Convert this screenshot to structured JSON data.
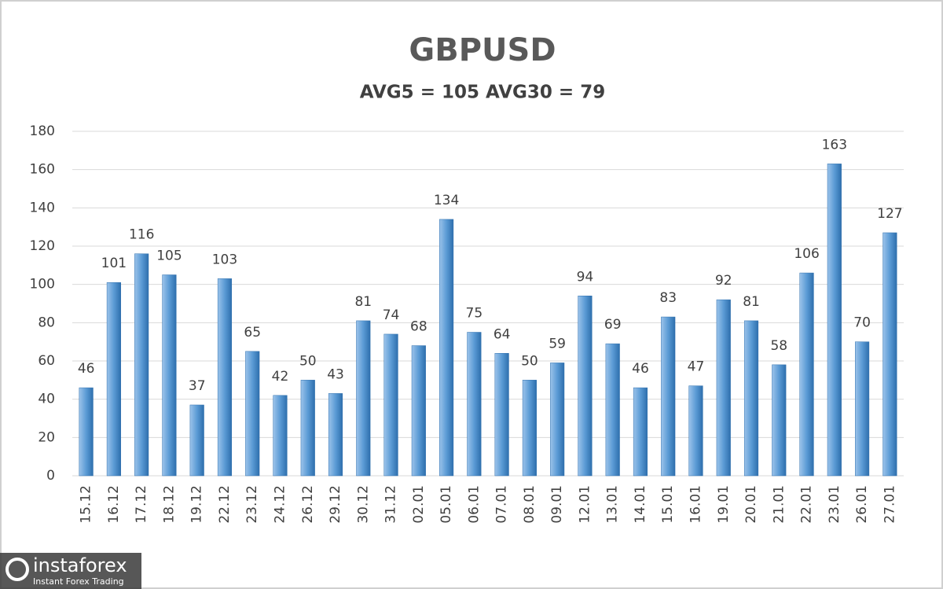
{
  "chart_data": {
    "type": "bar",
    "title": "GBPUSD",
    "subtitle": "AVG5 = 105 AVG30 = 79",
    "categories": [
      "15.12",
      "16.12",
      "17.12",
      "18.12",
      "19.12",
      "22.12",
      "23.12",
      "24.12",
      "26.12",
      "29.12",
      "30.12",
      "31.12",
      "02.01",
      "05.01",
      "06.01",
      "07.01",
      "08.01",
      "09.01",
      "12.01",
      "13.01",
      "14.01",
      "15.01",
      "16.01",
      "19.01",
      "20.01",
      "21.01",
      "22.01",
      "23.01",
      "26.01",
      "27.01"
    ],
    "values": [
      46,
      101,
      116,
      105,
      37,
      103,
      65,
      42,
      50,
      43,
      81,
      74,
      68,
      134,
      75,
      64,
      50,
      59,
      94,
      69,
      46,
      83,
      47,
      92,
      81,
      58,
      106,
      163,
      70,
      127
    ],
    "color": "#5b9bd5",
    "ylim": [
      0,
      180
    ],
    "yticks": [
      0,
      20,
      40,
      60,
      80,
      100,
      120,
      140,
      160,
      180
    ],
    "grid": true
  },
  "watermark": {
    "brand": "instaforex",
    "tagline": "Instant Forex Trading"
  }
}
